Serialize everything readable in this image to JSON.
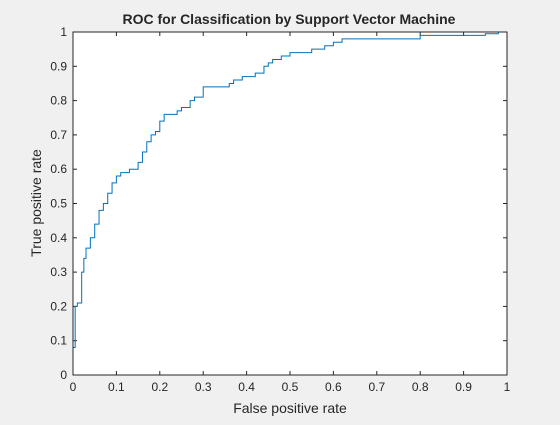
{
  "chart_data": {
    "type": "line",
    "title": "ROC for Classification by Support Vector Machine",
    "xlabel": "False positive rate",
    "ylabel": "True positive rate",
    "xlim": [
      0,
      1
    ],
    "ylim": [
      0,
      1
    ],
    "grid": false,
    "legend": "none",
    "xticks": [
      "0",
      "0.1",
      "0.2",
      "0.3",
      "0.4",
      "0.5",
      "0.6",
      "0.7",
      "0.8",
      "0.9",
      "1"
    ],
    "yticks": [
      "0",
      "0.1",
      "0.2",
      "0.3",
      "0.4",
      "0.5",
      "0.6",
      "0.7",
      "0.8",
      "0.9",
      "1"
    ],
    "series": [
      {
        "color": "#0072bd",
        "x": [
          0,
          0,
          0.005,
          0.005,
          0.01,
          0.01,
          0.02,
          0.02,
          0.025,
          0.025,
          0.03,
          0.03,
          0.04,
          0.04,
          0.05,
          0.05,
          0.06,
          0.06,
          0.07,
          0.07,
          0.08,
          0.08,
          0.09,
          0.09,
          0.1,
          0.1,
          0.11,
          0.11,
          0.12,
          0.12,
          0.13,
          0.13,
          0.15,
          0.15,
          0.16,
          0.16,
          0.17,
          0.17,
          0.18,
          0.18,
          0.19,
          0.19,
          0.2,
          0.2,
          0.21,
          0.21,
          0.22,
          0.22,
          0.24,
          0.24,
          0.25,
          0.25,
          0.26,
          0.26,
          0.27,
          0.27,
          0.28,
          0.28,
          0.3,
          0.3,
          0.33,
          0.33,
          0.36,
          0.36,
          0.37,
          0.37,
          0.38,
          0.38,
          0.39,
          0.39,
          0.4,
          0.4,
          0.42,
          0.42,
          0.44,
          0.44,
          0.45,
          0.45,
          0.46,
          0.46,
          0.48,
          0.48,
          0.5,
          0.5,
          0.53,
          0.53,
          0.55,
          0.55,
          0.58,
          0.58,
          0.6,
          0.6,
          0.62,
          0.62,
          0.64,
          0.64,
          0.8,
          0.8,
          0.95,
          0.95,
          0.98,
          0.98,
          1
        ],
        "y": [
          0,
          0.08,
          0.08,
          0.2,
          0.2,
          0.21,
          0.21,
          0.3,
          0.3,
          0.34,
          0.34,
          0.37,
          0.37,
          0.4,
          0.4,
          0.44,
          0.44,
          0.48,
          0.48,
          0.5,
          0.5,
          0.53,
          0.53,
          0.56,
          0.56,
          0.58,
          0.58,
          0.59,
          0.59,
          0.59,
          0.59,
          0.6,
          0.6,
          0.62,
          0.62,
          0.65,
          0.65,
          0.68,
          0.68,
          0.7,
          0.7,
          0.71,
          0.71,
          0.74,
          0.74,
          0.76,
          0.76,
          0.76,
          0.76,
          0.77,
          0.77,
          0.78,
          0.78,
          0.78,
          0.78,
          0.8,
          0.8,
          0.81,
          0.81,
          0.84,
          0.84,
          0.84,
          0.84,
          0.85,
          0.85,
          0.86,
          0.86,
          0.86,
          0.86,
          0.87,
          0.87,
          0.87,
          0.87,
          0.88,
          0.88,
          0.9,
          0.9,
          0.91,
          0.91,
          0.92,
          0.92,
          0.93,
          0.93,
          0.94,
          0.94,
          0.94,
          0.94,
          0.95,
          0.95,
          0.96,
          0.96,
          0.97,
          0.97,
          0.98,
          0.98,
          0.98,
          0.98,
          0.99,
          0.99,
          0.995,
          0.995,
          1,
          1
        ]
      }
    ]
  }
}
